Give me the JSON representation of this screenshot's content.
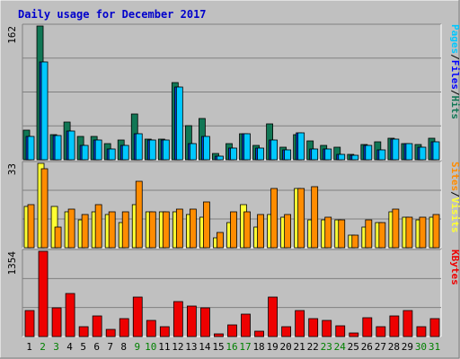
{
  "title": "Daily usage for December 2017",
  "colors": {
    "background": "#c0c0c0",
    "pages": "#117755",
    "files": "#00c8ff",
    "hits": "#2f9f7f",
    "visits": "#ffff33",
    "sites": "#ff8c00",
    "kbytes": "#ee0000",
    "weekend_label": "#008000",
    "weekday_label": "#000000",
    "grid": "#808080"
  },
  "chart_data": [
    {
      "type": "bar",
      "name": "hits-files-pages",
      "x": [
        "1",
        "2",
        "3",
        "4",
        "5",
        "6",
        "7",
        "8",
        "9",
        "10",
        "11",
        "12",
        "13",
        "14",
        "15",
        "16",
        "17",
        "18",
        "19",
        "20",
        "21",
        "22",
        "23",
        "24",
        "25",
        "26",
        "27",
        "28",
        "29",
        "30",
        "31"
      ],
      "ymax_label": "162",
      "ylim": [
        0,
        162
      ],
      "legend": [
        {
          "text": "Pages",
          "color": "#00c8ff"
        },
        {
          "text": "/",
          "color": "#000000"
        },
        {
          "text": "Files",
          "color": "#0000ff"
        },
        {
          "text": "/",
          "color": "#000000"
        },
        {
          "text": "Hits",
          "color": "#117755"
        }
      ],
      "series": [
        {
          "name": "Hits",
          "values": [
            36,
            162,
            30,
            46,
            28,
            28,
            20,
            24,
            55,
            25,
            25,
            94,
            41,
            50,
            8,
            20,
            32,
            17,
            44,
            15,
            30,
            23,
            17,
            15,
            7,
            18,
            22,
            26,
            20,
            19,
            26
          ]
        },
        {
          "name": "Files",
          "values": [
            28,
            118,
            29,
            35,
            17,
            24,
            13,
            17,
            32,
            24,
            24,
            88,
            20,
            28,
            4,
            14,
            31,
            14,
            24,
            12,
            33,
            13,
            13,
            7,
            5,
            17,
            12,
            25,
            20,
            15,
            22
          ]
        },
        {
          "name": "Pages",
          "values": [
            28,
            118,
            29,
            35,
            17,
            24,
            13,
            17,
            32,
            24,
            24,
            88,
            20,
            28,
            4,
            14,
            31,
            14,
            24,
            12,
            33,
            13,
            13,
            7,
            5,
            17,
            12,
            25,
            20,
            15,
            22
          ]
        }
      ]
    },
    {
      "type": "bar",
      "name": "visits-sites",
      "x": [
        "1",
        "2",
        "3",
        "4",
        "5",
        "6",
        "7",
        "8",
        "9",
        "10",
        "11",
        "12",
        "13",
        "14",
        "15",
        "16",
        "17",
        "18",
        "19",
        "20",
        "21",
        "22",
        "23",
        "24",
        "25",
        "26",
        "27",
        "28",
        "29",
        "30",
        "31"
      ],
      "ymax_label": "33",
      "ylim": [
        0,
        33
      ],
      "legend": [
        {
          "text": "Sites",
          "color": "#ff8c00"
        },
        {
          "text": "/",
          "color": "#000000"
        },
        {
          "text": "Visits",
          "color": "#ffff33"
        }
      ],
      "series": [
        {
          "name": "Visits",
          "values": [
            16,
            33,
            16,
            14,
            11,
            14,
            13,
            10,
            17,
            14,
            14,
            14,
            13,
            12,
            4,
            10,
            17,
            8,
            13,
            12,
            23,
            11,
            11,
            11,
            5,
            8,
            10,
            14,
            12,
            11,
            12
          ]
        },
        {
          "name": "Sites",
          "values": [
            17,
            31,
            8,
            15,
            13,
            17,
            14,
            14,
            26,
            14,
            14,
            15,
            15,
            18,
            6,
            14,
            14,
            13,
            23,
            13,
            23,
            24,
            12,
            11,
            5,
            11,
            10,
            15,
            12,
            12,
            13
          ]
        }
      ]
    },
    {
      "type": "bar",
      "name": "kbytes",
      "x": [
        "1",
        "2",
        "3",
        "4",
        "5",
        "6",
        "7",
        "8",
        "9",
        "10",
        "11",
        "12",
        "13",
        "14",
        "15",
        "16",
        "17",
        "18",
        "19",
        "20",
        "21",
        "22",
        "23",
        "24",
        "25",
        "26",
        "27",
        "28",
        "29",
        "30",
        "31"
      ],
      "ymax_label": "1354",
      "ylim": [
        0,
        1354
      ],
      "legend": [
        {
          "text": "KBytes",
          "color": "#ee0000"
        }
      ],
      "series": [
        {
          "name": "KBytes",
          "values": [
            420,
            1354,
            450,
            680,
            160,
            330,
            110,
            280,
            620,
            250,
            150,
            560,
            490,
            460,
            40,
            180,
            350,
            90,
            620,
            150,
            420,
            280,
            250,
            170,
            60,
            300,
            150,
            330,
            420,
            150,
            290
          ]
        }
      ]
    }
  ]
}
